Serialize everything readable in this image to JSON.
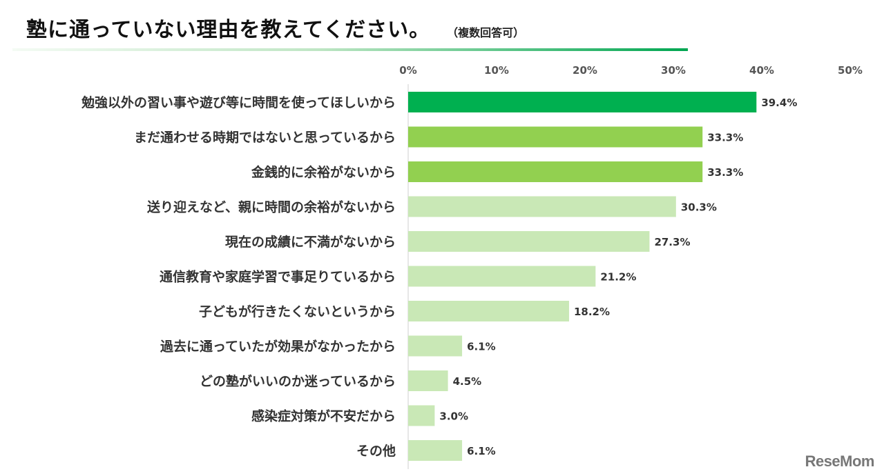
{
  "header": {
    "title": "塾に通っていない理由を教えてください。",
    "subtitle": "（複数回答可）"
  },
  "logo": {
    "text": "ReseMom"
  },
  "colors": {
    "top": "#00b050",
    "mid": "#92d050",
    "low": "#c9e8b6"
  },
  "chart_data": {
    "type": "bar",
    "orientation": "horizontal",
    "categories": [
      "勉強以外の習い事や遊び等に時間を使ってほしいから",
      "まだ通わせる時期ではないと思っているから",
      "金銭的に余裕がないから",
      "送り迎えなど、親に時間の余裕がないから",
      "現在の成績に不満がないから",
      "通信教育や家庭学習で事足りているから",
      "子どもが行きたくないというから",
      "過去に通っていたが効果がなかったから",
      "どの塾がいいのか迷っているから",
      "感染症対策が不安だから",
      "その他"
    ],
    "values": [
      39.4,
      33.3,
      33.3,
      30.3,
      27.3,
      21.2,
      18.2,
      6.1,
      4.5,
      3.0,
      6.1
    ],
    "value_labels": [
      "39.4%",
      "33.3%",
      "33.3%",
      "30.3%",
      "27.3%",
      "21.2%",
      "18.2%",
      "6.1%",
      "4.5%",
      "3.0%",
      "6.1%"
    ],
    "xlim": [
      0,
      50
    ],
    "ticks": [
      0,
      10,
      20,
      30,
      40,
      50
    ],
    "tick_labels": [
      "0%",
      "10%",
      "20%",
      "30%",
      "40%",
      "50%"
    ],
    "xaxis_position": "top",
    "grid": false,
    "legend": "none"
  }
}
